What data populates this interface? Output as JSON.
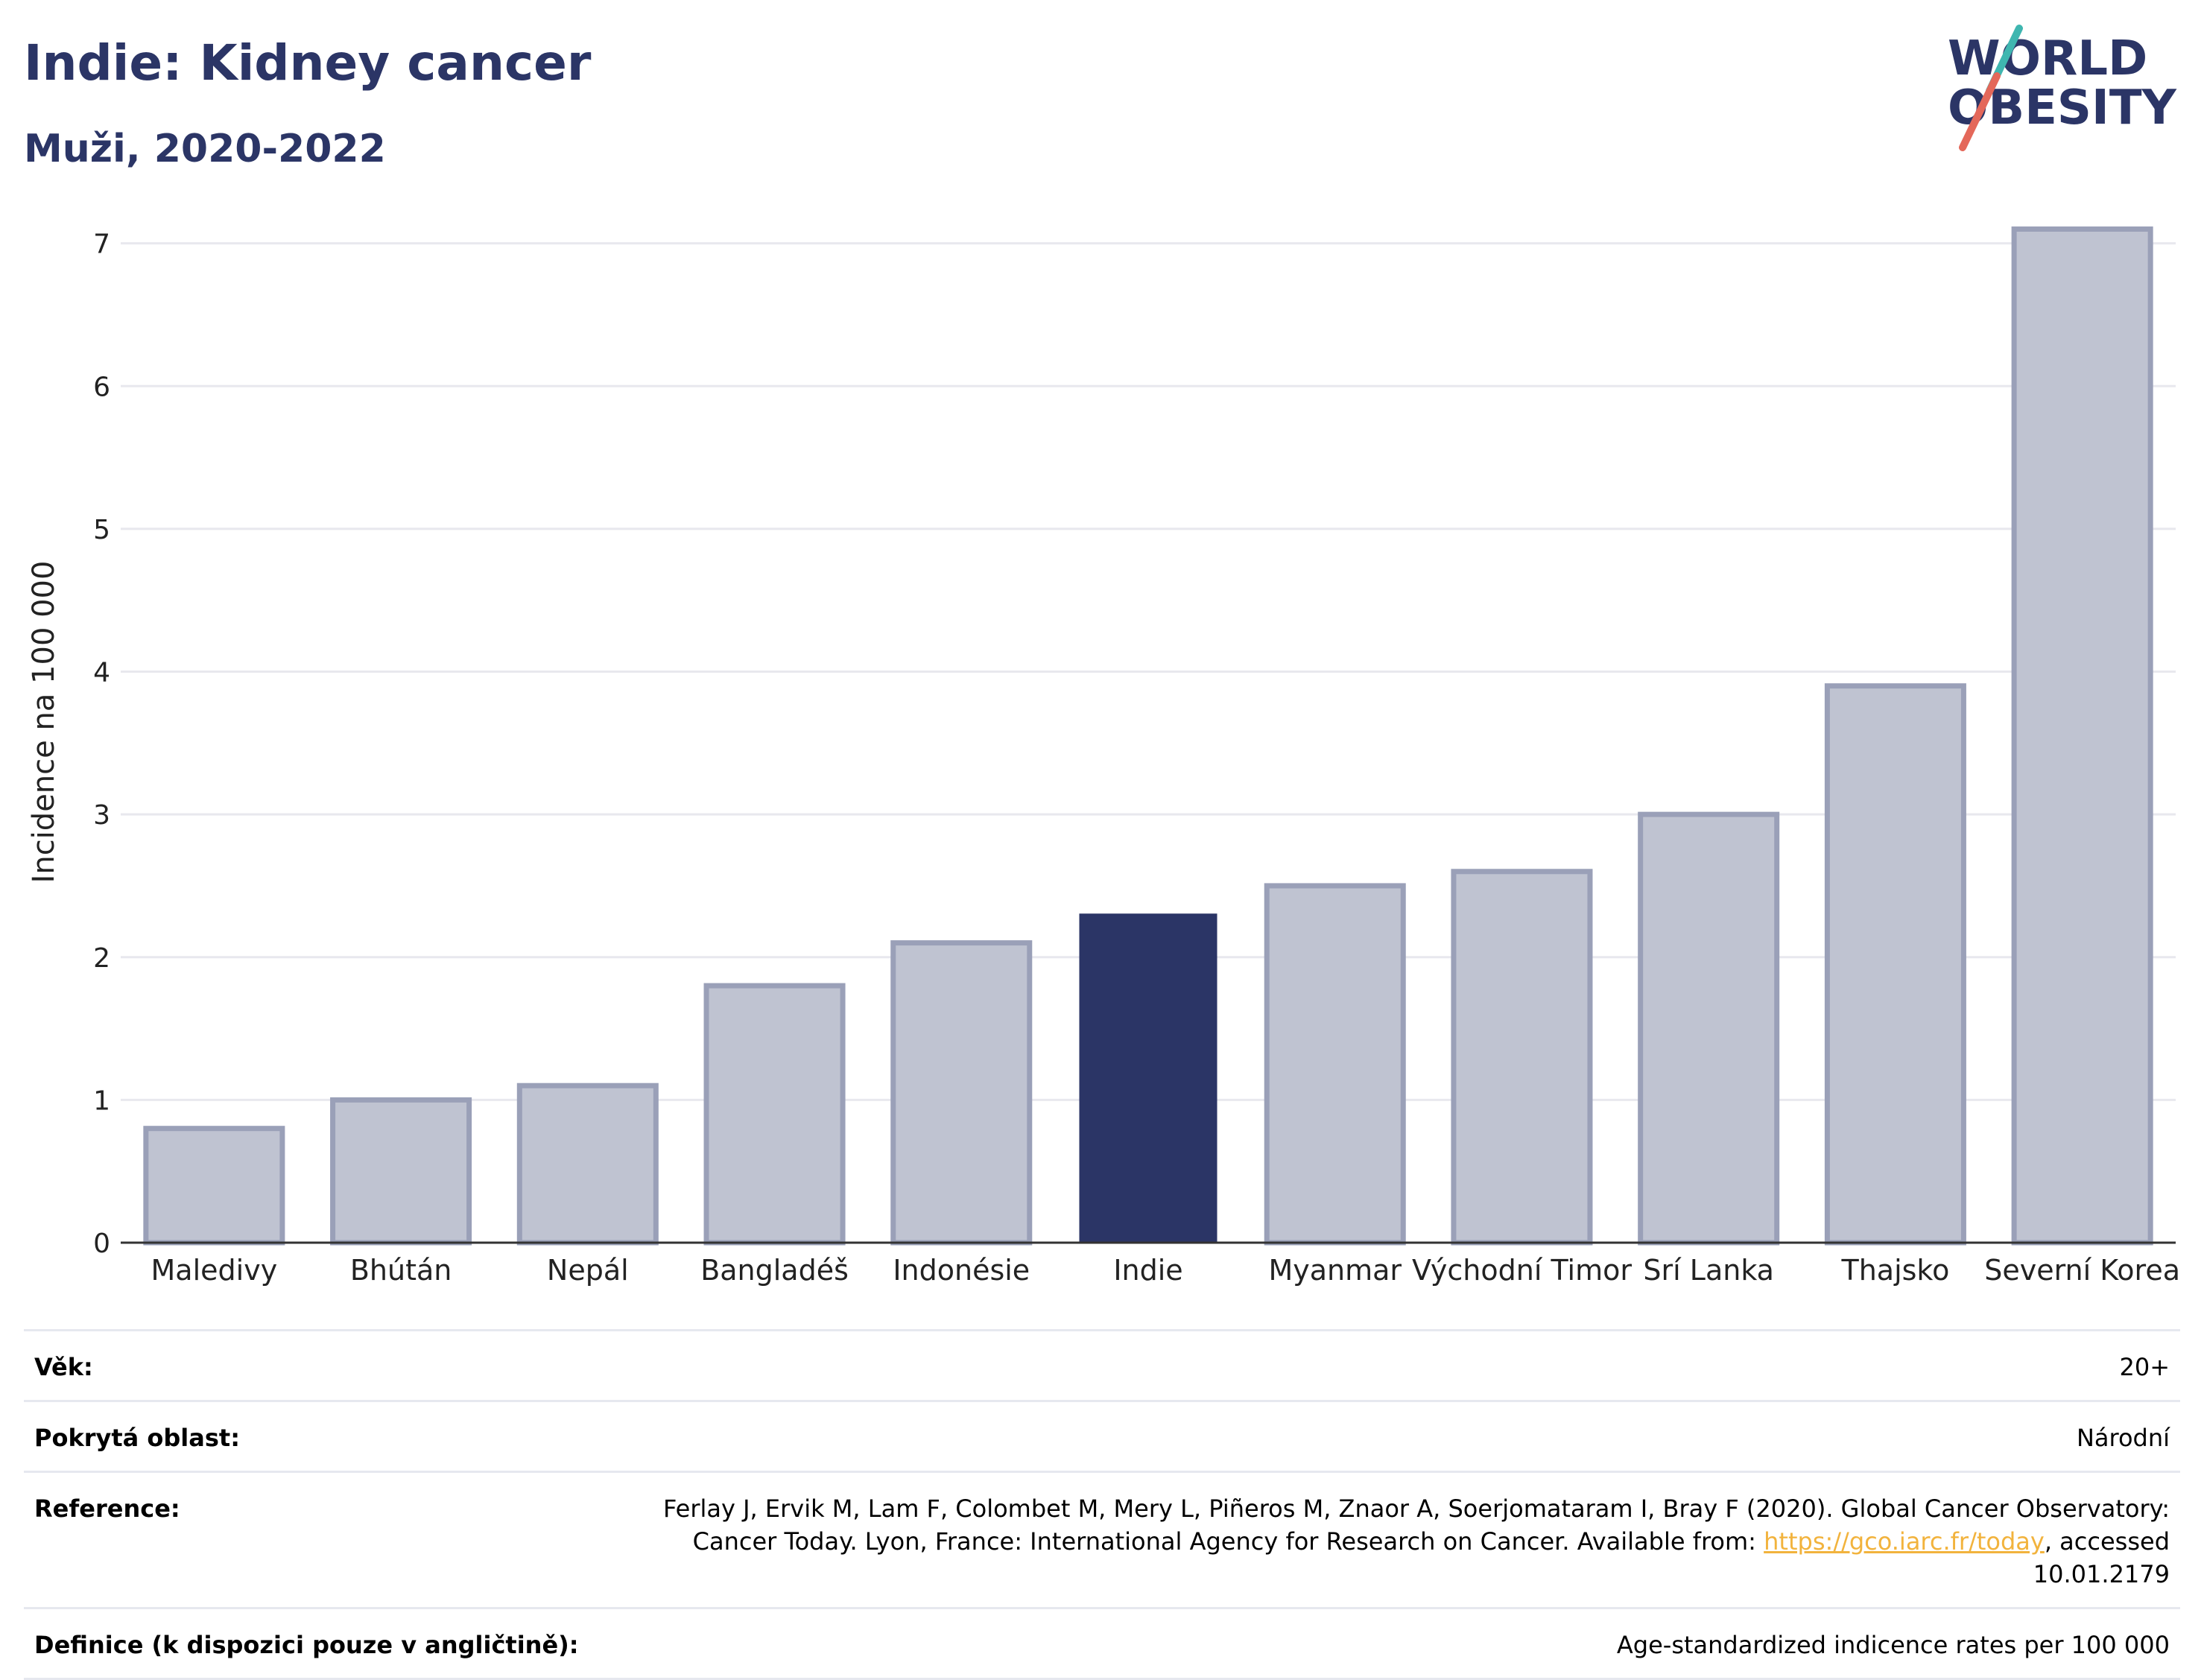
{
  "header": {
    "title": "Indie: Kidney cancer",
    "subtitle": "Muži, 2020-2022"
  },
  "logo": {
    "line1": "WORLD",
    "line2": "OBESITY",
    "colors": {
      "text": "#2b3566",
      "slash_red": "#e4685a",
      "slash_teal": "#3fb6b0"
    }
  },
  "chart_data": {
    "type": "bar",
    "title": "Indie: Kidney cancer",
    "subtitle": "Muži, 2020-2022",
    "categories": [
      "Maledivy",
      "Bhútán",
      "Nepál",
      "Bangladéš",
      "Indonésie",
      "Indie",
      "Myanmar",
      "Východní Timor",
      "Srí Lanka",
      "Thajsko",
      "Severní Korea"
    ],
    "values": [
      0.8,
      1.0,
      1.1,
      1.8,
      2.1,
      2.3,
      2.5,
      2.6,
      3.0,
      3.9,
      7.1
    ],
    "highlight": "Indie",
    "xlabel": "",
    "ylabel": "Incidence na 100 000",
    "ylim": [
      0,
      7.4
    ],
    "yticks": [
      0,
      1,
      2,
      3,
      4,
      5,
      6,
      7
    ],
    "grid": true,
    "colors": {
      "bar": "#bfc3d1",
      "bar_edge": "#9aa0b8",
      "highlight": "#2b3566"
    }
  },
  "info": {
    "age_label": "Věk:",
    "age_value": "20+",
    "coverage_label": "Pokrytá oblast:",
    "coverage_value": "Národní",
    "reference_label": "Reference:",
    "reference_text_1": "Ferlay J, Ervik M, Lam F, Colombet M, Mery L, Piñeros M, Znaor A, Soerjomataram I, Bray F (2020). Global Cancer Observatory: Cancer Today. Lyon, France: International Agency for Research on Cancer. Available from: ",
    "reference_link": "https://gco.iarc.fr/today",
    "reference_text_2": ", accessed 10.01.2179",
    "definition_label": "Definice (k dispozici pouze v angličtině):",
    "definition_value": "Age-standardized indicence rates per 100 000"
  }
}
